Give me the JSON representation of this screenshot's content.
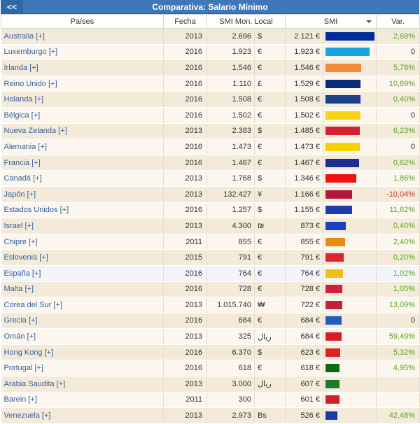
{
  "header": {
    "back_label": "<<",
    "title": "Comparativa: Salario Mínimo"
  },
  "columns": {
    "pais": "Países",
    "fecha": "Fecha",
    "local": "SMI Mon. Local",
    "smi": "SMI",
    "var": "Var."
  },
  "rows": [
    {
      "pais": "Australia [+]",
      "fecha": "2013",
      "local": "2.696",
      "cur": "$",
      "smi": "2.121 €",
      "level": 2121,
      "color": "#002d9c",
      "var": "2,68%",
      "sign": "pos"
    },
    {
      "pais": "Luxemburgo [+]",
      "fecha": "2016",
      "local": "1.923",
      "cur": "€",
      "smi": "1.923 €",
      "level": 1923,
      "color": "#19a3e0",
      "var": "0",
      "sign": "zero"
    },
    {
      "pais": "Irlanda [+]",
      "fecha": "2016",
      "local": "1.546",
      "cur": "€",
      "smi": "1.546 €",
      "level": 1546,
      "color": "#f28a3e",
      "var": "5,78%",
      "sign": "pos"
    },
    {
      "pais": "Reino Unido [+]",
      "fecha": "2016",
      "local": "1.110",
      "cur": "£",
      "smi": "1.529 €",
      "level": 1529,
      "color": "#0b2a7a",
      "var": "10,89%",
      "sign": "pos"
    },
    {
      "pais": "Holanda [+]",
      "fecha": "2016",
      "local": "1.508",
      "cur": "€",
      "smi": "1.508 €",
      "level": 1508,
      "color": "#1e3f8c",
      "var": "0,40%",
      "sign": "pos"
    },
    {
      "pais": "Bélgica [+]",
      "fecha": "2016",
      "local": "1.502",
      "cur": "€",
      "smi": "1.502 €",
      "level": 1502,
      "color": "#f7d417",
      "var": "0",
      "sign": "zero"
    },
    {
      "pais": "Nueva Zelanda [+]",
      "fecha": "2013",
      "local": "2.383",
      "cur": "$",
      "smi": "1.485 €",
      "level": 1485,
      "color": "#d42030",
      "var": "6,23%",
      "sign": "pos"
    },
    {
      "pais": "Alemania [+]",
      "fecha": "2016",
      "local": "1.473",
      "cur": "€",
      "smi": "1.473 €",
      "level": 1473,
      "color": "#f7d000",
      "var": "0",
      "sign": "zero"
    },
    {
      "pais": "Francia [+]",
      "fecha": "2016",
      "local": "1.467",
      "cur": "€",
      "smi": "1.467 €",
      "level": 1467,
      "color": "#1a2f8f",
      "var": "0,62%",
      "sign": "pos"
    },
    {
      "pais": "Canadá [+]",
      "fecha": "2013",
      "local": "1.768",
      "cur": "$",
      "smi": "1.346 €",
      "level": 1346,
      "color": "#ee1111",
      "var": "1,86%",
      "sign": "pos"
    },
    {
      "pais": "Japón [+]",
      "fecha": "2013",
      "local": "132.427",
      "cur": "¥",
      "smi": "1.166 €",
      "level": 1166,
      "color": "#b5153a",
      "var": "-10,04%",
      "sign": "neg"
    },
    {
      "pais": "Estados Unidos [+]",
      "fecha": "2016",
      "local": "1.257",
      "cur": "$",
      "smi": "1.155 €",
      "level": 1155,
      "color": "#1e3cb0",
      "var": "11,62%",
      "sign": "pos"
    },
    {
      "pais": "Israel [+]",
      "fecha": "2013",
      "local": "4.300",
      "cur": "₪",
      "smi": "873 €",
      "level": 873,
      "color": "#1d3fc4",
      "var": "0,40%",
      "sign": "pos"
    },
    {
      "pais": "Chipre [+]",
      "fecha": "2011",
      "local": "855",
      "cur": "€",
      "smi": "855 €",
      "level": 855,
      "color": "#ea8a12",
      "var": "2,40%",
      "sign": "pos"
    },
    {
      "pais": "Eslovenia [+]",
      "fecha": "2015",
      "local": "791",
      "cur": "€",
      "smi": "791 €",
      "level": 791,
      "color": "#e0222e",
      "var": "0,20%",
      "sign": "pos"
    },
    {
      "pais": "España [+]",
      "fecha": "2016",
      "local": "764",
      "cur": "€",
      "smi": "764 €",
      "level": 764,
      "color": "#f2bd12",
      "var": "1,02%",
      "sign": "pos",
      "highlight": true
    },
    {
      "pais": "Malta [+]",
      "fecha": "2016",
      "local": "728",
      "cur": "€",
      "smi": "728 €",
      "level": 728,
      "color": "#d2203a",
      "var": "1,05%",
      "sign": "pos"
    },
    {
      "pais": "Corea del Sur [+]",
      "fecha": "2013",
      "local": "1.015.740",
      "cur": "₩",
      "smi": "722 €",
      "level": 722,
      "color": "#c4203a",
      "var": "13,09%",
      "sign": "pos"
    },
    {
      "pais": "Grecia [+]",
      "fecha": "2016",
      "local": "684",
      "cur": "€",
      "smi": "684 €",
      "level": 684,
      "color": "#1f5fb8",
      "var": "0",
      "sign": "zero"
    },
    {
      "pais": "Omán [+]",
      "fecha": "2013",
      "local": "325",
      "cur": "ريال",
      "smi": "684 €",
      "level": 684,
      "color": "#d41f28",
      "var": "59,49%",
      "sign": "pos"
    },
    {
      "pais": "Hong Kong [+]",
      "fecha": "2016",
      "local": "6.370",
      "cur": "$",
      "smi": "623 €",
      "level": 623,
      "color": "#dd2222",
      "var": "5,32%",
      "sign": "pos"
    },
    {
      "pais": "Portugal [+]",
      "fecha": "2016",
      "local": "618",
      "cur": "€",
      "smi": "618 €",
      "level": 618,
      "color": "#0b6b12",
      "var": "4,95%",
      "sign": "pos"
    },
    {
      "pais": "Arabia Saudita [+]",
      "fecha": "2013",
      "local": "3.000",
      "cur": "ريال",
      "smi": "607 €",
      "level": 607,
      "color": "#1e7a2a",
      "var": "",
      "sign": "zero"
    },
    {
      "pais": "Barein [+]",
      "fecha": "2011",
      "local": "300",
      "cur": "",
      "smi": "601 €",
      "level": 601,
      "color": "#d21f2a",
      "var": "",
      "sign": "zero"
    },
    {
      "pais": "Venezuela [+]",
      "fecha": "2013",
      "local": "2.973",
      "cur": "Bs",
      "smi": "526 €",
      "level": 526,
      "color": "#1a3aa8",
      "var": "42,48%",
      "sign": "pos"
    }
  ]
}
